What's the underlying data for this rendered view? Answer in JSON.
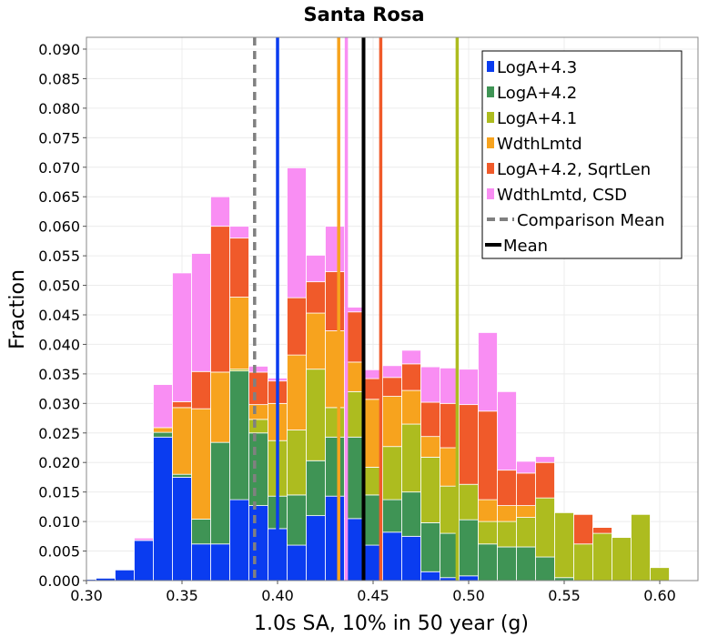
{
  "chart_data": {
    "type": "bar",
    "stacked": true,
    "title": "Santa Rosa",
    "xlabel": "1.0s SA, 10% in 50 year (g)",
    "ylabel": "Fraction",
    "xlim": [
      0.3,
      0.62
    ],
    "ylim": [
      0.0,
      0.092
    ],
    "xticks": [
      "0.30",
      "0.35",
      "0.40",
      "0.45",
      "0.50",
      "0.55",
      "0.60"
    ],
    "yticks": [
      "0.000",
      "0.005",
      "0.010",
      "0.015",
      "0.020",
      "0.025",
      "0.030",
      "0.035",
      "0.040",
      "0.045",
      "0.050",
      "0.055",
      "0.060",
      "0.065",
      "0.070",
      "0.075",
      "0.080",
      "0.085",
      "0.090"
    ],
    "bin_width": 0.01,
    "bin_centers": [
      0.3,
      0.31,
      0.32,
      0.33,
      0.34,
      0.35,
      0.36,
      0.37,
      0.38,
      0.39,
      0.4,
      0.41,
      0.42,
      0.43,
      0.44,
      0.45,
      0.46,
      0.47,
      0.48,
      0.49,
      0.5,
      0.51,
      0.52,
      0.53,
      0.54,
      0.55,
      0.56,
      0.57,
      0.58,
      0.59,
      0.6,
      0.61
    ],
    "series": [
      {
        "name": "LogA+4.3",
        "color": "#0a3cf0",
        "values": [
          0.0002,
          0.0004,
          0.0018,
          0.0068,
          0.0243,
          0.0175,
          0.0062,
          0.0062,
          0.0137,
          0.0127,
          0.0088,
          0.006,
          0.011,
          0.0143,
          0.0105,
          0.006,
          0.0082,
          0.0075,
          0.0015,
          0.0005,
          0.0008,
          0,
          0,
          0,
          0,
          0,
          0,
          0,
          0,
          0,
          0,
          0
        ]
      },
      {
        "name": "LogA+4.2",
        "color": "#3f9455",
        "values": [
          0,
          0,
          0,
          0,
          0.0008,
          0.0005,
          0.0042,
          0.0172,
          0.0218,
          0.0123,
          0.0055,
          0.0085,
          0.0093,
          0.01,
          0.0138,
          0.0085,
          0.0055,
          0.0075,
          0.0083,
          0.0075,
          0.0095,
          0.0062,
          0.0057,
          0.0057,
          0.004,
          0.0005,
          0,
          0,
          0,
          0,
          0,
          0
        ]
      },
      {
        "name": "LogA+4.1",
        "color": "#adbc1f",
        "values": [
          0,
          0,
          0,
          0,
          0,
          0,
          0,
          0,
          0.0003,
          0.0023,
          0.0094,
          0.011,
          0.0155,
          0.005,
          0.0077,
          0.0047,
          0.009,
          0.0115,
          0.0111,
          0.008,
          0.006,
          0.0038,
          0.0043,
          0.005,
          0.01,
          0.011,
          0.0062,
          0.008,
          0.0073,
          0.0112,
          0.0022,
          0
        ]
      },
      {
        "name": "WdthLmtd",
        "color": "#f7a31e",
        "values": [
          0,
          0,
          0,
          0,
          0.0008,
          0.0113,
          0.0187,
          0.0119,
          0.0122,
          0.0025,
          0.0063,
          0.0127,
          0.0095,
          0.013,
          0.005,
          0.0115,
          0.0085,
          0.0057,
          0.0035,
          0.0065,
          0,
          0.0037,
          0.0027,
          0.002,
          0,
          0,
          0,
          0,
          0,
          0,
          0,
          0
        ]
      },
      {
        "name": "LogA+4.2, SqrtLen",
        "color": "#f05a2a",
        "values": [
          0,
          0,
          0,
          0,
          0,
          0.001,
          0.0063,
          0.0247,
          0.01,
          0.0055,
          0.0038,
          0.0097,
          0.0053,
          0.01,
          0.0085,
          0.0035,
          0.0032,
          0.0045,
          0.0058,
          0.0075,
          0.0135,
          0.015,
          0.006,
          0.0055,
          0.006,
          0,
          0.005,
          0.001,
          0,
          0,
          0,
          0
        ]
      },
      {
        "name": "WdthLmtd, CSD",
        "color": "#f98ef3",
        "values": [
          0,
          0,
          0,
          0.0004,
          0.0073,
          0.0218,
          0.02,
          0.005,
          0.002,
          0.001,
          0.0005,
          0.022,
          0.0045,
          0.0077,
          0.0008,
          0.0015,
          0.002,
          0.0023,
          0.006,
          0.006,
          0.006,
          0.0133,
          0.0133,
          0.002,
          0.001,
          0,
          0,
          0,
          0,
          0,
          0,
          0
        ]
      }
    ],
    "vlines": [
      {
        "name": "LogA+4.3",
        "x": 0.4,
        "color": "#0a3cf0",
        "style": "solid"
      },
      {
        "name": "WdthLmtd",
        "x": 0.432,
        "color": "#f7a31e",
        "style": "solid"
      },
      {
        "name": "WdthLmtd, CSD",
        "x": 0.436,
        "color": "#f98ef3",
        "style": "solid"
      },
      {
        "name": "LogA+4.2, SqrtLen",
        "x": 0.454,
        "color": "#f05a2a",
        "style": "solid"
      },
      {
        "name": "LogA+4.1",
        "x": 0.494,
        "color": "#adbc1f",
        "style": "solid"
      },
      {
        "name": "Comparison Mean",
        "x": 0.388,
        "color": "#808080",
        "style": "dashed"
      },
      {
        "name": "Mean",
        "x": 0.445,
        "color": "#000000",
        "style": "solid"
      }
    ],
    "legend": {
      "position": "top-right",
      "entries": [
        {
          "label": "LogA+4.3",
          "color": "#0a3cf0",
          "kind": "box"
        },
        {
          "label": "LogA+4.2",
          "color": "#3f9455",
          "kind": "box"
        },
        {
          "label": "LogA+4.1",
          "color": "#adbc1f",
          "kind": "box"
        },
        {
          "label": "WdthLmtd",
          "color": "#f7a31e",
          "kind": "box"
        },
        {
          "label": "LogA+4.2, SqrtLen",
          "color": "#f05a2a",
          "kind": "box"
        },
        {
          "label": "WdthLmtd, CSD",
          "color": "#f98ef3",
          "kind": "box"
        },
        {
          "label": "Comparison Mean",
          "color": "#808080",
          "kind": "dashed-line"
        },
        {
          "label": "Mean",
          "color": "#000000",
          "kind": "line"
        }
      ]
    }
  }
}
